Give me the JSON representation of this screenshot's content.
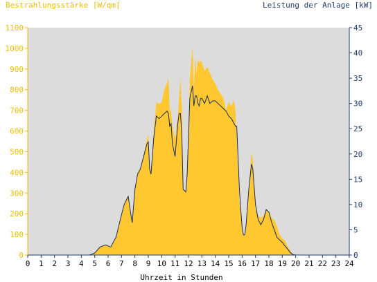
{
  "chart_data": {
    "type": "area",
    "ylabel_left": "Bestrahlungsstärke [W/qm]",
    "ylabel_right": "Leistung der Anlage [kW]",
    "xlabel": "Uhrzeit in Stunden",
    "xlim": [
      0,
      24
    ],
    "ylim_left": [
      0,
      1100
    ],
    "ylim_right": [
      0,
      45
    ],
    "xticks": [
      "0",
      "1",
      "2",
      "3",
      "4",
      "5",
      "6",
      "7",
      "8",
      "9",
      "10",
      "11",
      "12",
      "13",
      "14",
      "15",
      "16",
      "17",
      "18",
      "19",
      "20",
      "21",
      "22",
      "23",
      "24"
    ],
    "yticks_left": [
      "0",
      "100",
      "200",
      "300",
      "400",
      "500",
      "600",
      "700",
      "800",
      "900",
      "1000",
      "1100"
    ],
    "yticks_right": [
      "0",
      "5",
      "10",
      "15",
      "20",
      "25",
      "30",
      "35",
      "40",
      "45"
    ],
    "grid": false,
    "colors": {
      "plot_bg": "#dcdcdc",
      "irradiance": "#ffc830",
      "power": "#1a2b5a",
      "left_axis": "#f0c000",
      "right_axis": "#1f3a6e"
    },
    "series": [
      {
        "axis": "left",
        "style": "area",
        "x": [
          0,
          4.6,
          5.0,
          5.4,
          5.8,
          6.2,
          6.6,
          7.0,
          7.2,
          7.5,
          7.7,
          7.8,
          8.0,
          8.2,
          8.4,
          8.6,
          8.8,
          8.9,
          9.0,
          9.1,
          9.2,
          9.4,
          9.6,
          9.8,
          10.0,
          10.2,
          10.4,
          10.5,
          10.6,
          10.7,
          10.8,
          11.0,
          11.2,
          11.3,
          11.4,
          11.5,
          11.6,
          11.8,
          11.9,
          12.1,
          12.3,
          12.4,
          12.5,
          12.6,
          12.7,
          12.8,
          12.9,
          13.0,
          13.2,
          13.4,
          13.6,
          13.8,
          14.0,
          14.2,
          14.4,
          14.6,
          14.8,
          15.0,
          15.2,
          15.4,
          15.5,
          15.6,
          15.8,
          15.9,
          16.0,
          16.1,
          16.2,
          16.3,
          16.5,
          16.7,
          16.8,
          17.0,
          17.2,
          17.4,
          17.6,
          17.8,
          18.0,
          18.2,
          18.4,
          18.6,
          18.8,
          19.0,
          19.2,
          19.4,
          19.6,
          19.8,
          20.0,
          20.2,
          20.4,
          21,
          22,
          23,
          24
        ],
        "y": [
          0,
          0,
          10,
          40,
          50,
          40,
          90,
          200,
          250,
          290,
          200,
          160,
          320,
          400,
          420,
          470,
          530,
          560,
          580,
          420,
          400,
          590,
          740,
          730,
          740,
          800,
          830,
          860,
          700,
          700,
          620,
          560,
          670,
          760,
          860,
          720,
          320,
          310,
          420,
          850,
          1010,
          800,
          950,
          880,
          950,
          930,
          940,
          930,
          890,
          910,
          880,
          850,
          830,
          800,
          780,
          760,
          700,
          740,
          720,
          750,
          700,
          560,
          260,
          200,
          140,
          100,
          100,
          140,
          320,
          500,
          460,
          220,
          190,
          180,
          190,
          220,
          210,
          180,
          170,
          140,
          100,
          80,
          70,
          40,
          20,
          5,
          0,
          0,
          0,
          0,
          0,
          0,
          0
        ]
      },
      {
        "axis": "right",
        "style": "line",
        "x": [
          0,
          4.6,
          5.0,
          5.4,
          5.8,
          6.2,
          6.6,
          7.0,
          7.2,
          7.5,
          7.7,
          7.8,
          8.0,
          8.2,
          8.4,
          8.6,
          8.8,
          8.9,
          9.0,
          9.1,
          9.2,
          9.4,
          9.6,
          9.8,
          10.0,
          10.2,
          10.4,
          10.5,
          10.6,
          10.7,
          10.8,
          11.0,
          11.2,
          11.3,
          11.4,
          11.5,
          11.6,
          11.8,
          11.9,
          12.1,
          12.3,
          12.4,
          12.5,
          12.6,
          12.7,
          12.8,
          12.9,
          13.0,
          13.2,
          13.4,
          13.6,
          13.8,
          14.0,
          14.2,
          14.4,
          14.6,
          14.8,
          15.0,
          15.2,
          15.4,
          15.5,
          15.6,
          15.8,
          15.9,
          16.0,
          16.1,
          16.2,
          16.3,
          16.5,
          16.7,
          16.8,
          17.0,
          17.2,
          17.4,
          17.6,
          17.8,
          18.0,
          18.2,
          18.4,
          18.6,
          18.8,
          19.0,
          19.2,
          19.4,
          19.6,
          19.8,
          20.0,
          20.2,
          20.4,
          21,
          22,
          23,
          24
        ],
        "y": [
          0,
          0,
          0.4,
          1.6,
          2.0,
          1.6,
          3.6,
          8.0,
          10.0,
          11.6,
          8.0,
          6.4,
          13.0,
          16.0,
          17.0,
          19.0,
          21.0,
          22.0,
          22.4,
          17.0,
          16.0,
          23.0,
          27.5,
          27.0,
          27.5,
          28.0,
          28.5,
          28.0,
          25.5,
          26.0,
          22.0,
          19.5,
          26.0,
          28.0,
          28.0,
          24.0,
          13.0,
          12.5,
          16.0,
          31.0,
          33.5,
          29.5,
          31.5,
          31.5,
          30.0,
          29.5,
          31.0,
          31.0,
          30.0,
          31.5,
          30.0,
          30.5,
          30.5,
          30.0,
          29.5,
          29.0,
          28.5,
          27.5,
          27.0,
          26.0,
          25.5,
          25.5,
          13.0,
          9.0,
          5.5,
          4.0,
          4.0,
          6.0,
          13.0,
          18.0,
          17.0,
          10.0,
          7.0,
          6.0,
          7.0,
          9.0,
          8.5,
          6.5,
          5.0,
          3.5,
          3.0,
          2.5,
          1.8,
          1.2,
          0.5,
          0.1,
          0,
          0,
          0,
          0,
          0,
          0,
          0
        ]
      }
    ]
  }
}
